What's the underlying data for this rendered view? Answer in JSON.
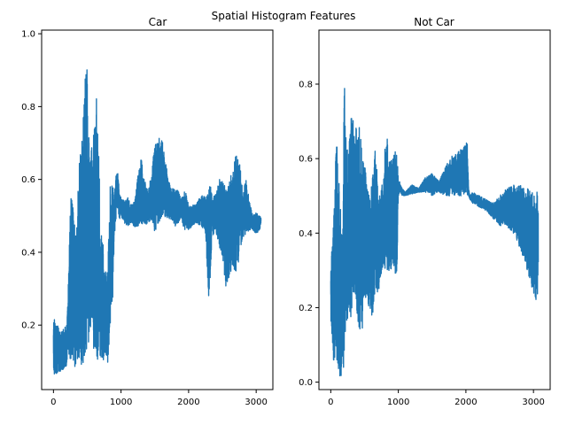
{
  "suptitle": "Spatial Histogram Features",
  "series_color": "#1f77b4",
  "chart_data": [
    {
      "type": "line",
      "title": "Car",
      "xlabel": "",
      "ylabel": "",
      "xlim": [
        -175,
        3247
      ],
      "ylim": [
        0.023,
        1.01
      ],
      "xticks": [
        0,
        1000,
        2000,
        3000
      ],
      "yticks": [
        0.2,
        0.4,
        0.6,
        0.8,
        1.0
      ],
      "ytick_labels": [
        "0.2",
        "0.4",
        "0.6",
        "0.8",
        "1.0"
      ],
      "grid": false,
      "n_points": 3072,
      "envelope": {
        "x": [
          0,
          100,
          200,
          220,
          260,
          300,
          340,
          380,
          420,
          460,
          480,
          500,
          520,
          540,
          560,
          600,
          640,
          680,
          700,
          720,
          760,
          780,
          800,
          840,
          860,
          880,
          900,
          940,
          980,
          1000,
          1050,
          1100,
          1150,
          1200,
          1250,
          1300,
          1350,
          1400,
          1450,
          1500,
          1550,
          1600,
          1650,
          1700,
          1750,
          1800,
          1850,
          1900,
          1950,
          2000,
          2100,
          2200,
          2250,
          2300,
          2350,
          2400,
          2450,
          2500,
          2550,
          2600,
          2650,
          2700,
          2750,
          2800,
          2850,
          2900,
          2950,
          3000,
          3050,
          3071
        ],
        "hi": [
          0.23,
          0.18,
          0.2,
          0.32,
          0.58,
          0.5,
          0.44,
          0.66,
          0.7,
          0.89,
          0.93,
          0.96,
          0.8,
          0.62,
          0.7,
          0.74,
          0.84,
          0.62,
          0.42,
          0.48,
          0.34,
          0.36,
          0.34,
          0.58,
          0.6,
          0.58,
          0.56,
          0.64,
          0.56,
          0.55,
          0.54,
          0.55,
          0.53,
          0.54,
          0.61,
          0.66,
          0.6,
          0.57,
          0.62,
          0.72,
          0.71,
          0.72,
          0.66,
          0.6,
          0.58,
          0.57,
          0.57,
          0.55,
          0.57,
          0.53,
          0.53,
          0.56,
          0.55,
          0.62,
          0.55,
          0.56,
          0.6,
          0.6,
          0.58,
          0.59,
          0.63,
          0.67,
          0.66,
          0.57,
          0.6,
          0.54,
          0.5,
          0.51,
          0.5,
          0.5
        ],
        "lo": [
          0.06,
          0.07,
          0.09,
          0.12,
          0.1,
          0.09,
          0.08,
          0.08,
          0.09,
          0.08,
          0.1,
          0.12,
          0.13,
          0.2,
          0.16,
          0.12,
          0.1,
          0.1,
          0.11,
          0.09,
          0.12,
          0.1,
          0.08,
          0.2,
          0.24,
          0.28,
          0.44,
          0.52,
          0.49,
          0.5,
          0.48,
          0.47,
          0.48,
          0.47,
          0.47,
          0.48,
          0.47,
          0.48,
          0.49,
          0.45,
          0.48,
          0.49,
          0.49,
          0.49,
          0.48,
          0.47,
          0.48,
          0.48,
          0.46,
          0.46,
          0.48,
          0.47,
          0.45,
          0.26,
          0.44,
          0.46,
          0.42,
          0.38,
          0.3,
          0.33,
          0.35,
          0.34,
          0.38,
          0.44,
          0.45,
          0.46,
          0.46,
          0.45,
          0.46,
          0.48
        ]
      }
    },
    {
      "type": "line",
      "title": "Not Car",
      "xlabel": "",
      "ylabel": "",
      "xlim": [
        -175,
        3247
      ],
      "ylim": [
        -0.02,
        0.945
      ],
      "xticks": [
        0,
        1000,
        2000,
        3000
      ],
      "yticks": [
        0.0,
        0.2,
        0.4,
        0.6,
        0.8
      ],
      "ytick_labels": [
        "0.0",
        "0.2",
        "0.4",
        "0.6",
        "0.8"
      ],
      "grid": false,
      "n_points": 3072,
      "envelope": {
        "x": [
          0,
          40,
          80,
          120,
          160,
          180,
          200,
          210,
          230,
          260,
          300,
          340,
          380,
          420,
          460,
          500,
          540,
          580,
          620,
          660,
          700,
          740,
          780,
          820,
          860,
          900,
          940,
          980,
          1000,
          1020,
          1030,
          1060,
          1100,
          1200,
          1300,
          1400,
          1500,
          1600,
          1700,
          1800,
          1900,
          1950,
          2000,
          2020,
          2040,
          2060,
          2100,
          2200,
          2300,
          2400,
          2500,
          2600,
          2700,
          2800,
          2850,
          2900,
          2950,
          3000,
          3050,
          3071
        ],
        "hi": [
          0.32,
          0.42,
          0.67,
          0.55,
          0.42,
          0.44,
          0.9,
          0.7,
          0.65,
          0.6,
          0.72,
          0.7,
          0.7,
          0.72,
          0.62,
          0.6,
          0.52,
          0.5,
          0.57,
          0.66,
          0.5,
          0.52,
          0.55,
          0.69,
          0.6,
          0.6,
          0.62,
          0.65,
          0.54,
          0.54,
          0.53,
          0.52,
          0.51,
          0.53,
          0.52,
          0.55,
          0.56,
          0.54,
          0.58,
          0.61,
          0.62,
          0.63,
          0.645,
          0.645,
          0.52,
          0.5,
          0.51,
          0.5,
          0.49,
          0.48,
          0.5,
          0.52,
          0.53,
          0.53,
          0.52,
          0.52,
          0.52,
          0.515,
          0.515,
          0.515
        ],
        "lo": [
          0.17,
          0.05,
          0.04,
          0.02,
          0.01,
          0.05,
          0.02,
          0.04,
          0.1,
          0.18,
          0.16,
          0.25,
          0.2,
          0.14,
          0.13,
          0.19,
          0.23,
          0.17,
          0.18,
          0.22,
          0.24,
          0.27,
          0.32,
          0.29,
          0.3,
          0.3,
          0.29,
          0.29,
          0.5,
          0.51,
          0.51,
          0.5,
          0.5,
          0.505,
          0.51,
          0.51,
          0.5,
          0.51,
          0.5,
          0.5,
          0.5,
          0.5,
          0.5,
          0.5,
          0.5,
          0.49,
          0.48,
          0.47,
          0.46,
          0.44,
          0.42,
          0.42,
          0.4,
          0.36,
          0.33,
          0.3,
          0.27,
          0.24,
          0.2,
          0.26
        ]
      }
    }
  ]
}
